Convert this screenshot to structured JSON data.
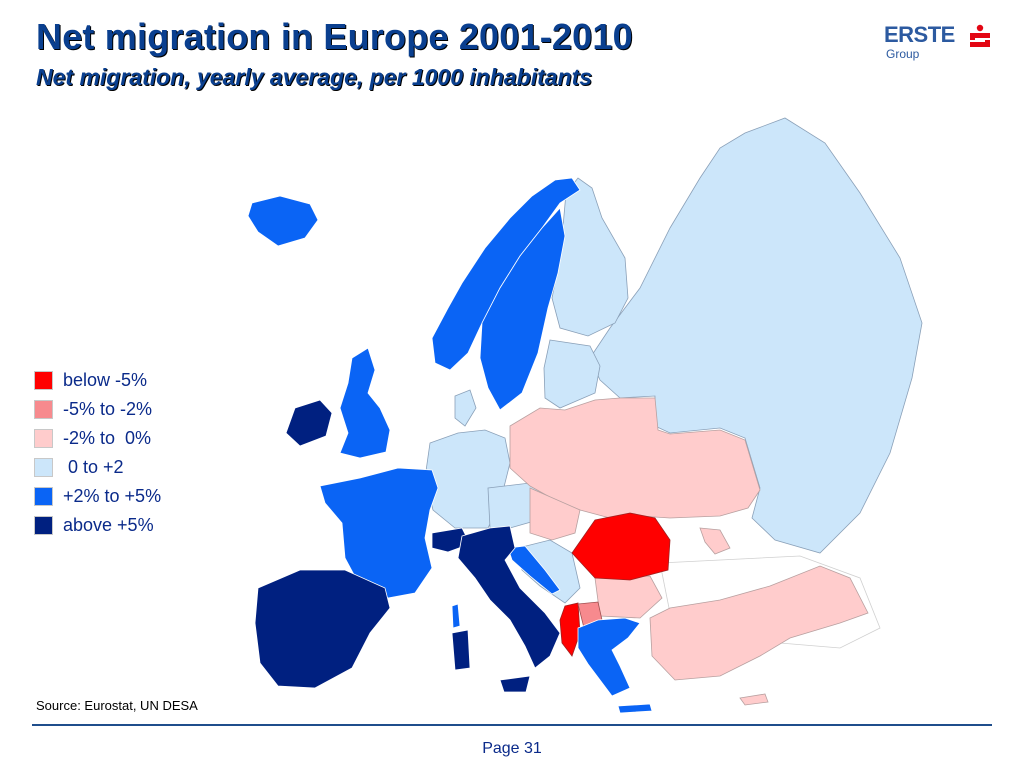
{
  "title": "Net migration in Europe 2001-2010",
  "subtitle": "Net migration, yearly average, per 1000 inhabitants",
  "logo": {
    "brand": "ERSTE",
    "group": "Group",
    "mark_color": "#e30613",
    "text_color": "#2c5aa0"
  },
  "legend": [
    {
      "label": "below -5%",
      "color": "#ff0000"
    },
    {
      "label": "-5% to -2%",
      "color": "#f78a8e"
    },
    {
      "label": "-2% to  0%",
      "color": "#ffcccc"
    },
    {
      "label": " 0 to +2",
      "color": "#cce6fa"
    },
    {
      "label": "+2% to +5%",
      "color": "#0a64f5"
    },
    {
      "label": "above +5%",
      "color": "#002080"
    }
  ],
  "source": "Source: Eurostat, UN DESA",
  "footer": {
    "page": "Page 31"
  }
}
